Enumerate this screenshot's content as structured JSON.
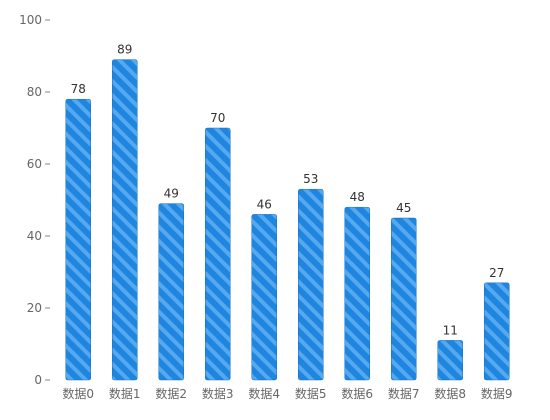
{
  "chart_data": {
    "type": "bar",
    "categories": [
      "数据0",
      "数据1",
      "数据2",
      "数据3",
      "数据4",
      "数据5",
      "数据6",
      "数据7",
      "数据8",
      "数据9"
    ],
    "values": [
      78,
      89,
      49,
      70,
      46,
      53,
      48,
      45,
      11,
      27
    ],
    "title": "",
    "xlabel": "",
    "ylabel": "",
    "ylim": [
      0,
      100
    ],
    "yticks": [
      0,
      20,
      40,
      60,
      80,
      100
    ],
    "grid": false,
    "data_labels": true,
    "colors": {
      "bar": "#1f86e0",
      "bar_stripe": "#56a8ef",
      "bar_edge": "#1670c2"
    }
  }
}
